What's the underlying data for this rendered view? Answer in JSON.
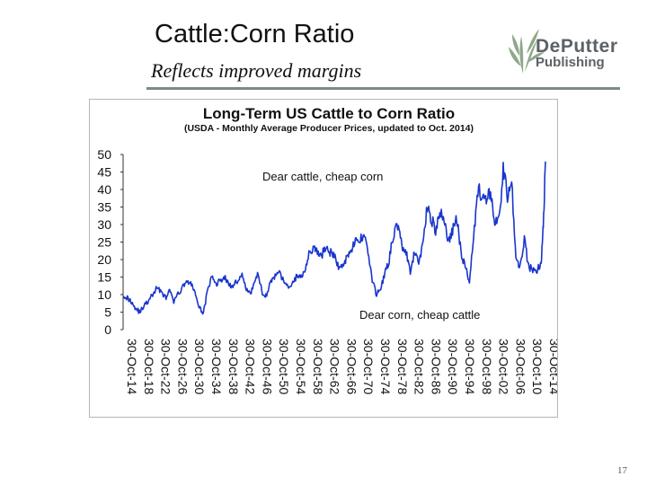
{
  "slide": {
    "title": "Cattle:Corn Ratio",
    "subtitle": "Reflects improved margins",
    "page_number": "17",
    "rule_color": "#7d8a83"
  },
  "logo": {
    "line1": "DePutter",
    "line2": "Publishing",
    "icon": "leaf-sprig-icon",
    "color": "#5c6266",
    "leaf_color": "#8fa889"
  },
  "chart_data": {
    "type": "line",
    "title": "Long-Term US Cattle to Corn Ratio",
    "subtitle": "(USDA  - Monthly Average Producer Prices, updated to Oct. 2014)",
    "ylim": [
      0,
      50
    ],
    "yticks": [
      "50",
      "45",
      "40",
      "35",
      "30",
      "25",
      "20",
      "15",
      "10",
      "5",
      "0"
    ],
    "xlim": [
      1914,
      2014
    ],
    "xticks": [
      "30-Oct-14",
      "30-Oct-18",
      "30-Oct-22",
      "30-Oct-26",
      "30-Oct-30",
      "30-Oct-34",
      "30-Oct-38",
      "30-Oct-42",
      "30-Oct-46",
      "30-Oct-50",
      "30-Oct-54",
      "30-Oct-58",
      "30-Oct-62",
      "30-Oct-66",
      "30-Oct-70",
      "30-Oct-74",
      "30-Oct-78",
      "30-Oct-82",
      "30-Oct-86",
      "30-Oct-90",
      "30-Oct-94",
      "30-Oct-98",
      "30-Oct-02",
      "30-Oct-06",
      "30-Oct-10",
      "30-Oct-14"
    ],
    "annotations": [
      "Dear cattle, cheap corn",
      "Dear corn, cheap cattle"
    ],
    "line_color": "#1a35cc",
    "series": [
      {
        "name": "Cattle:Corn Ratio",
        "x": [
          1914,
          1915,
          1916,
          1917,
          1918,
          1919,
          1920,
          1921,
          1922,
          1923,
          1924,
          1925,
          1926,
          1927,
          1928,
          1929,
          1930,
          1931,
          1932,
          1933,
          1934,
          1935,
          1936,
          1937,
          1938,
          1939,
          1940,
          1941,
          1942,
          1943,
          1944,
          1945,
          1946,
          1947,
          1948,
          1949,
          1950,
          1951,
          1952,
          1953,
          1954,
          1955,
          1956,
          1957,
          1958,
          1959,
          1960,
          1961,
          1962,
          1963,
          1964,
          1965,
          1966,
          1967,
          1968,
          1969,
          1970,
          1971,
          1972,
          1973,
          1974,
          1975,
          1976,
          1977,
          1978,
          1979,
          1980,
          1981,
          1982,
          1983,
          1984,
          1985,
          1986,
          1987,
          1988,
          1989,
          1990,
          1991,
          1992,
          1993,
          1994,
          1995,
          1996,
          1997,
          1998,
          1999,
          2000,
          2001,
          2002,
          2003,
          2004,
          2005,
          2006,
          2007,
          2008,
          2009,
          2010,
          2011,
          2012,
          2013,
          2013.5,
          2014
        ],
        "values": [
          10,
          9,
          8,
          6,
          5,
          7,
          8,
          10,
          12,
          11,
          9,
          11,
          8,
          10,
          12,
          14,
          13,
          11,
          6,
          5,
          11,
          15,
          13,
          14,
          15,
          13,
          12,
          14,
          16,
          12,
          10,
          13,
          16,
          10,
          10,
          14,
          15,
          16,
          14,
          12,
          13,
          15,
          15,
          17,
          22,
          23,
          22,
          21,
          24,
          22,
          21,
          18,
          18,
          21,
          23,
          25,
          25,
          28,
          22,
          14,
          10,
          12,
          16,
          20,
          27,
          30,
          24,
          22,
          16,
          22,
          19,
          25,
          35,
          32,
          28,
          33,
          32,
          25,
          28,
          32,
          22,
          18,
          14,
          27,
          40,
          38,
          36,
          40,
          30,
          31,
          46,
          38,
          42,
          20,
          18,
          26,
          18,
          17,
          17,
          19,
          30,
          48
        ]
      }
    ]
  }
}
